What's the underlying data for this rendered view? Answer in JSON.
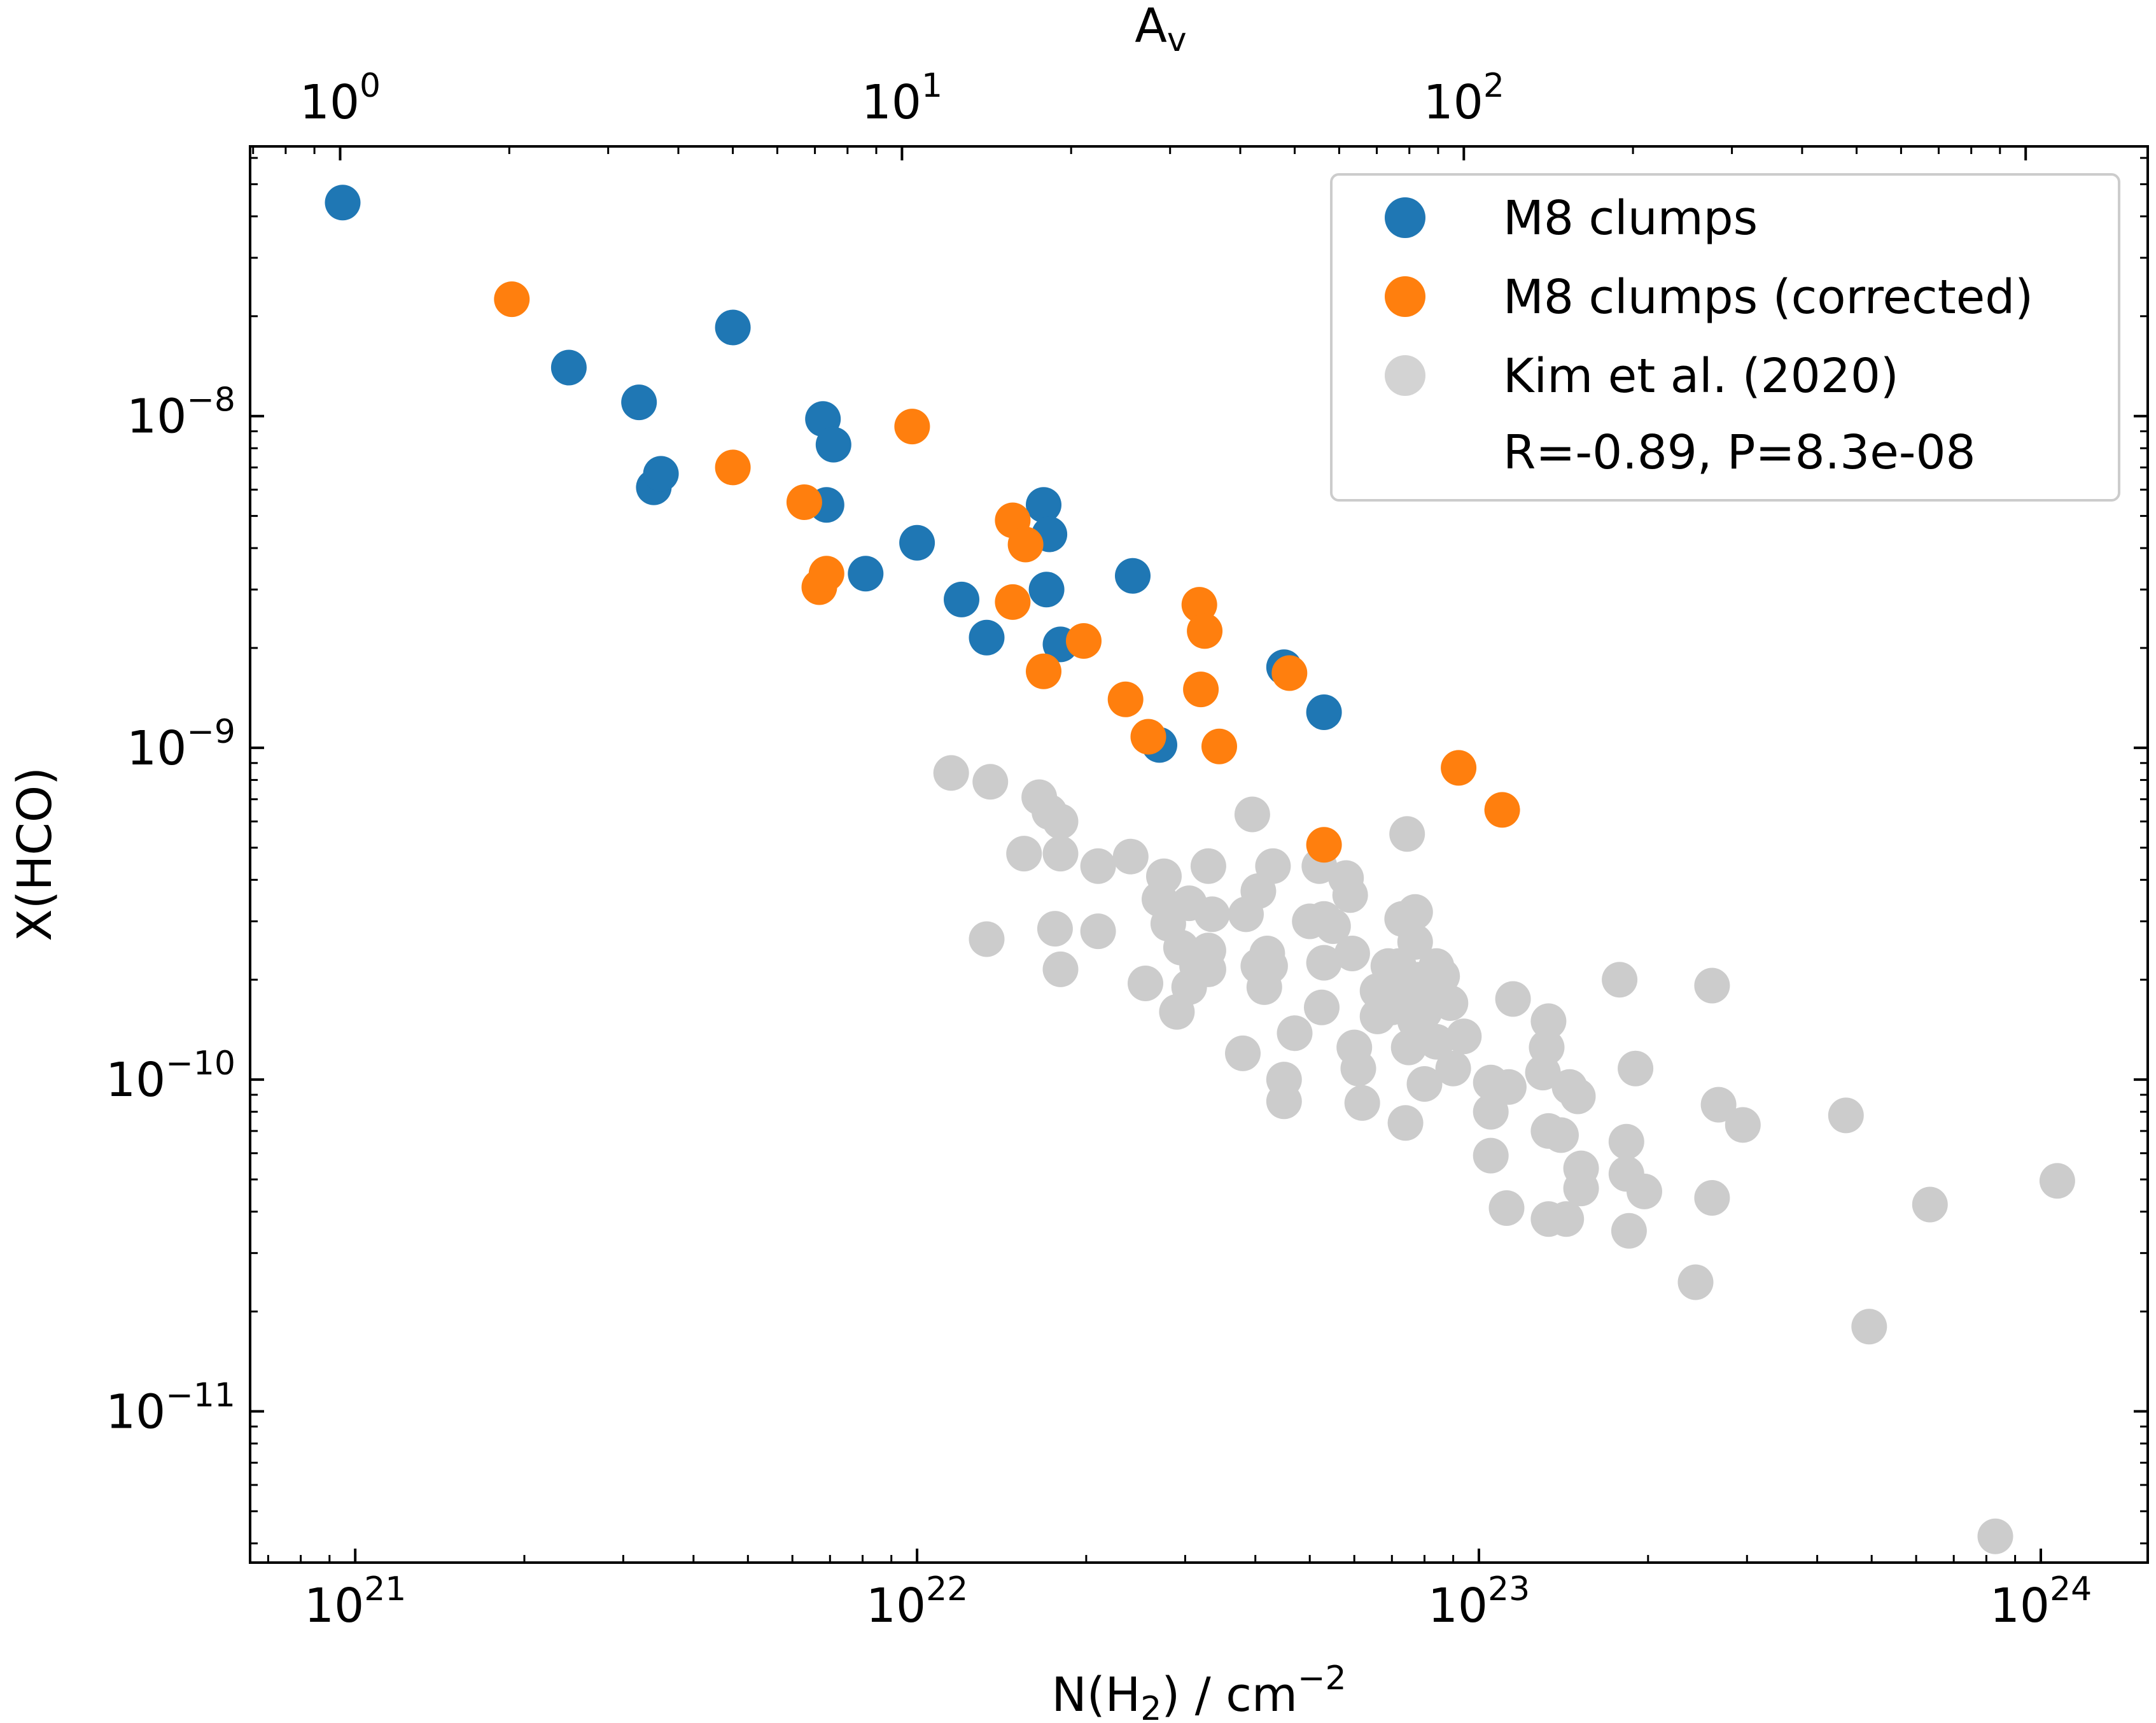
{
  "chart_data": {
    "type": "scatter",
    "xscale": "log",
    "yscale": "log",
    "xlim": [
      6.5e+20,
      1.55e+24
    ],
    "ylim": [
      3.5e-12,
      6.5e-08
    ],
    "xlabel_main": "N(H",
    "xlabel_sub": "2",
    "xlabel_rest": ") / cm",
    "xlabel_sup": "−2",
    "ylabel": "X(HCO)",
    "top_axis_label_main": "A",
    "top_axis_label_sub": "v",
    "top_axis_av_per_nh2": 1.0638e-21,
    "x_ticks": [
      {
        "value": 1e+21,
        "base": "10",
        "exp": "21"
      },
      {
        "value": 1e+22,
        "base": "10",
        "exp": "22"
      },
      {
        "value": 1e+23,
        "base": "10",
        "exp": "23"
      },
      {
        "value": 1e+24,
        "base": "10",
        "exp": "24"
      }
    ],
    "y_ticks": [
      {
        "value": 1e-08,
        "base": "10",
        "exp": "−8"
      },
      {
        "value": 1e-09,
        "base": "10",
        "exp": "−9"
      },
      {
        "value": 1e-10,
        "base": "10",
        "exp": "−10"
      },
      {
        "value": 1e-11,
        "base": "10",
        "exp": "−11"
      }
    ],
    "top_ticks": [
      {
        "value": 1,
        "base": "10",
        "exp": "0"
      },
      {
        "value": 10,
        "base": "10",
        "exp": "1"
      },
      {
        "value": 100,
        "base": "10",
        "exp": "2"
      }
    ],
    "series": [
      {
        "name": "M8 clumps",
        "color": "#1f77b4",
        "points": [
          [
            9.5e+20,
            4.4e-08
          ],
          [
            2.4e+21,
            1.4e-08
          ],
          [
            3.2e+21,
            1.1e-08
          ],
          [
            4.7e+21,
            1.85e-08
          ],
          [
            3.4e+21,
            6.1e-09
          ],
          [
            3.5e+21,
            6.7e-09
          ],
          [
            6.8e+21,
            9.8e-09
          ],
          [
            7.1e+21,
            8.2e-09
          ],
          [
            6.9e+21,
            5.4e-09
          ],
          [
            8.1e+21,
            3.35e-09
          ],
          [
            1e+22,
            4.15e-09
          ],
          [
            1.2e+22,
            2.8e-09
          ],
          [
            1.33e+22,
            2.15e-09
          ],
          [
            1.68e+22,
            5.4e-09
          ],
          [
            1.72e+22,
            4.4e-09
          ],
          [
            1.7e+22,
            3e-09
          ],
          [
            1.8e+22,
            2.05e-09
          ],
          [
            2.42e+22,
            3.3e-09
          ],
          [
            2.7e+22,
            1.02e-09
          ],
          [
            4.5e+22,
            1.75e-09
          ],
          [
            5.3e+22,
            1.28e-09
          ]
        ]
      },
      {
        "name": "M8 clumps (corrected)",
        "color": "#ff7f0e",
        "points": [
          [
            1.9e+21,
            2.25e-08
          ],
          [
            4.7e+21,
            7e-09
          ],
          [
            6.3e+21,
            5.5e-09
          ],
          [
            6.7e+21,
            3.05e-09
          ],
          [
            6.9e+21,
            3.35e-09
          ],
          [
            9.8e+21,
            9.3e-09
          ],
          [
            1.48e+22,
            4.85e-09
          ],
          [
            1.56e+22,
            4.1e-09
          ],
          [
            1.48e+22,
            2.75e-09
          ],
          [
            1.68e+22,
            1.7e-09
          ],
          [
            1.98e+22,
            2.1e-09
          ],
          [
            2.35e+22,
            1.4e-09
          ],
          [
            2.58e+22,
            1.08e-09
          ],
          [
            3.18e+22,
            2.7e-09
          ],
          [
            3.25e+22,
            2.25e-09
          ],
          [
            3.2e+22,
            1.5e-09
          ],
          [
            3.45e+22,
            1.01e-09
          ],
          [
            4.6e+22,
            1.68e-09
          ],
          [
            5.3e+22,
            5.1e-10
          ],
          [
            9.2e+22,
            8.7e-10
          ],
          [
            1.1e+23,
            6.5e-10
          ]
        ]
      },
      {
        "name": "Kim et al. (2020)",
        "color": "#cccccc",
        "points": [
          [
            1.15e+22,
            8.4e-10
          ],
          [
            1.35e+22,
            7.9e-10
          ],
          [
            1.33e+22,
            2.65e-10
          ],
          [
            1.65e+22,
            7.1e-10
          ],
          [
            1.72e+22,
            6.4e-10
          ],
          [
            1.8e+22,
            6e-10
          ],
          [
            1.55e+22,
            4.8e-10
          ],
          [
            1.8e+22,
            4.8e-10
          ],
          [
            1.76e+22,
            2.85e-10
          ],
          [
            1.8e+22,
            2.15e-10
          ],
          [
            2.1e+22,
            4.4e-10
          ],
          [
            2.1e+22,
            2.8e-10
          ],
          [
            2.4e+22,
            4.7e-10
          ],
          [
            2.55e+22,
            1.95e-10
          ],
          [
            2.75e+22,
            4.1e-10
          ],
          [
            2.7e+22,
            3.5e-10
          ],
          [
            2.8e+22,
            2.95e-10
          ],
          [
            2.95e+22,
            2.5e-10
          ],
          [
            3.05e+22,
            3.4e-10
          ],
          [
            3.15e+22,
            2.2e-10
          ],
          [
            3.05e+22,
            1.9e-10
          ],
          [
            2.9e+22,
            1.6e-10
          ],
          [
            3.3e+22,
            4.4e-10
          ],
          [
            3.35e+22,
            3.15e-10
          ],
          [
            3.3e+22,
            2.45e-10
          ],
          [
            3.3e+22,
            2.15e-10
          ],
          [
            3.85e+22,
            3.15e-10
          ],
          [
            3.95e+22,
            6.3e-10
          ],
          [
            3.8e+22,
            1.2e-10
          ],
          [
            4.05e+22,
            3.7e-10
          ],
          [
            4.3e+22,
            4.4e-10
          ],
          [
            4.2e+22,
            2.4e-10
          ],
          [
            4.05e+22,
            2.2e-10
          ],
          [
            4.25e+22,
            2.2e-10
          ],
          [
            4.15e+22,
            1.9e-10
          ],
          [
            4.5e+22,
            1e-10
          ],
          [
            4.5e+22,
            8.6e-11
          ],
          [
            4.7e+22,
            1.38e-10
          ],
          [
            5e+22,
            3e-10
          ],
          [
            5.2e+22,
            4.4e-10
          ],
          [
            5.3e+22,
            3.05e-10
          ],
          [
            5.3e+22,
            2.25e-10
          ],
          [
            5.25e+22,
            1.65e-10
          ],
          [
            5.5e+22,
            2.9e-10
          ],
          [
            5.8e+22,
            4.05e-10
          ],
          [
            5.9e+22,
            3.6e-10
          ],
          [
            5.95e+22,
            2.4e-10
          ],
          [
            6e+22,
            1.25e-10
          ],
          [
            6.1e+22,
            1.08e-10
          ],
          [
            6.2e+22,
            8.5e-11
          ],
          [
            6.6e+22,
            1.85e-10
          ],
          [
            6.6e+22,
            1.55e-10
          ],
          [
            6.9e+22,
            2.2e-10
          ],
          [
            7e+22,
            1.65e-10
          ],
          [
            7.2e+22,
            2.2e-10
          ],
          [
            7.3e+22,
            3.05e-10
          ],
          [
            7.45e+22,
            5.5e-10
          ],
          [
            7.4e+22,
            2e-10
          ],
          [
            7.5e+22,
            1.25e-10
          ],
          [
            7.4e+22,
            7.4e-11
          ],
          [
            7.7e+22,
            3.2e-10
          ],
          [
            7.7e+22,
            2.6e-10
          ],
          [
            7.8e+22,
            2e-10
          ],
          [
            7.8e+22,
            1.8e-10
          ],
          [
            7.7e+22,
            1.5e-10
          ],
          [
            8e+22,
            1.6e-10
          ],
          [
            8e+22,
            9.7e-11
          ],
          [
            8.4e+22,
            2.2e-10
          ],
          [
            8.4e+22,
            1.3e-10
          ],
          [
            8.6e+22,
            2.05e-10
          ],
          [
            8.9e+22,
            1.7e-10
          ],
          [
            9e+22,
            1.08e-10
          ],
          [
            9.4e+22,
            1.35e-10
          ],
          [
            1.05e+23,
            9.8e-11
          ],
          [
            1.05e+23,
            8e-11
          ],
          [
            1.05e+23,
            5.9e-11
          ],
          [
            1.12e+23,
            4.1e-11
          ],
          [
            1.13e+23,
            9.5e-11
          ],
          [
            1.15e+23,
            1.75e-10
          ],
          [
            1.3e+23,
            1.05e-10
          ],
          [
            1.33e+23,
            1.5e-10
          ],
          [
            1.32e+23,
            1.25e-10
          ],
          [
            1.33e+23,
            7e-11
          ],
          [
            1.33e+23,
            3.8e-11
          ],
          [
            1.43e+23,
            3.8e-11
          ],
          [
            1.4e+23,
            6.8e-11
          ],
          [
            1.45e+23,
            9.5e-11
          ],
          [
            1.5e+23,
            8.9e-11
          ],
          [
            1.52e+23,
            5.4e-11
          ],
          [
            1.52e+23,
            4.7e-11
          ],
          [
            1.78e+23,
            2e-10
          ],
          [
            1.83e+23,
            6.5e-11
          ],
          [
            1.83e+23,
            5.2e-11
          ],
          [
            1.85e+23,
            3.5e-11
          ],
          [
            1.9e+23,
            1.08e-10
          ],
          [
            1.97e+23,
            4.6e-11
          ],
          [
            2.43e+23,
            2.45e-11
          ],
          [
            2.6e+23,
            1.92e-10
          ],
          [
            2.6e+23,
            4.4e-11
          ],
          [
            2.67e+23,
            8.4e-11
          ],
          [
            2.95e+23,
            7.3e-11
          ],
          [
            4.5e+23,
            7.8e-11
          ],
          [
            4.95e+23,
            1.8e-11
          ],
          [
            6.35e+23,
            4.2e-11
          ],
          [
            8.3e+23,
            4.2e-12
          ],
          [
            1.07e+24,
            4.95e-11
          ]
        ]
      }
    ],
    "legend": {
      "location": "top-right",
      "entries": [
        {
          "label": "M8 clumps",
          "color": "#1f77b4",
          "marker": true
        },
        {
          "label": "M8 clumps (corrected)",
          "color": "#ff7f0e",
          "marker": true
        },
        {
          "label": "Kim et al. (2020)",
          "color": "#d3d3d3",
          "marker": true
        },
        {
          "label": "R=-0.89, P=8.3e-08",
          "color": "",
          "marker": false
        }
      ]
    }
  }
}
